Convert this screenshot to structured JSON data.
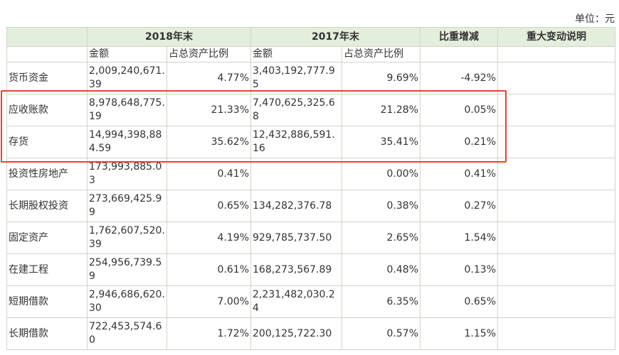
{
  "unit_label": "单位：元",
  "header": {
    "year_2018": "2018年末",
    "year_2017": "2017年末",
    "change": "比重增减",
    "explanation": "重大变动说明"
  },
  "subheader": {
    "amount_2018": "金额",
    "ratio_2018": "占总资产比例",
    "amount_2017": "金额",
    "ratio_2017": "占总资产比例"
  },
  "rows": [
    {
      "name": "货币资金",
      "amount_2018": "2,009,240,671.39",
      "ratio_2018": "4.77%",
      "amount_2017": "3,403,192,777.95",
      "ratio_2017": "9.69%",
      "change": "-4.92%",
      "explanation": ""
    },
    {
      "name": "应收账款",
      "amount_2018": "8,978,648,775.19",
      "ratio_2018": "21.33%",
      "amount_2017": "7,470,625,325.68",
      "ratio_2017": "21.28%",
      "change": "0.05%",
      "explanation": ""
    },
    {
      "name": "存货",
      "amount_2018": "14,994,398,884.59",
      "ratio_2018": "35.62%",
      "amount_2017": "12,432,886,591.16",
      "ratio_2017": "35.41%",
      "change": "0.21%",
      "explanation": ""
    },
    {
      "name": "投资性房地产",
      "amount_2018": "173,993,885.03",
      "ratio_2018": "0.41%",
      "amount_2017": "",
      "ratio_2017": "0.00%",
      "change": "0.41%",
      "explanation": ""
    },
    {
      "name": "长期股权投资",
      "amount_2018": "273,669,425.99",
      "ratio_2018": "0.65%",
      "amount_2017": "134,282,376.78",
      "ratio_2017": "0.38%",
      "change": "0.27%",
      "explanation": ""
    },
    {
      "name": "固定资产",
      "amount_2018": "1,762,607,520.39",
      "ratio_2018": "4.19%",
      "amount_2017": "929,785,737.50",
      "ratio_2017": "2.65%",
      "change": "1.54%",
      "explanation": ""
    },
    {
      "name": "在建工程",
      "amount_2018": "254,956,739.59",
      "ratio_2018": "0.61%",
      "amount_2017": "168,273,567.89",
      "ratio_2017": "0.48%",
      "change": "0.13%",
      "explanation": ""
    },
    {
      "name": "短期借款",
      "amount_2018": "2,946,686,620.30",
      "ratio_2018": "7.00%",
      "amount_2017": "2,231,482,030.24",
      "ratio_2017": "6.35%",
      "change": "0.65%",
      "explanation": ""
    },
    {
      "name": "长期借款",
      "amount_2018": "722,453,574.60",
      "ratio_2018": "1.72%",
      "amount_2017": "200,125,722.30",
      "ratio_2017": "0.57%",
      "change": "1.15%",
      "explanation": ""
    }
  ]
}
